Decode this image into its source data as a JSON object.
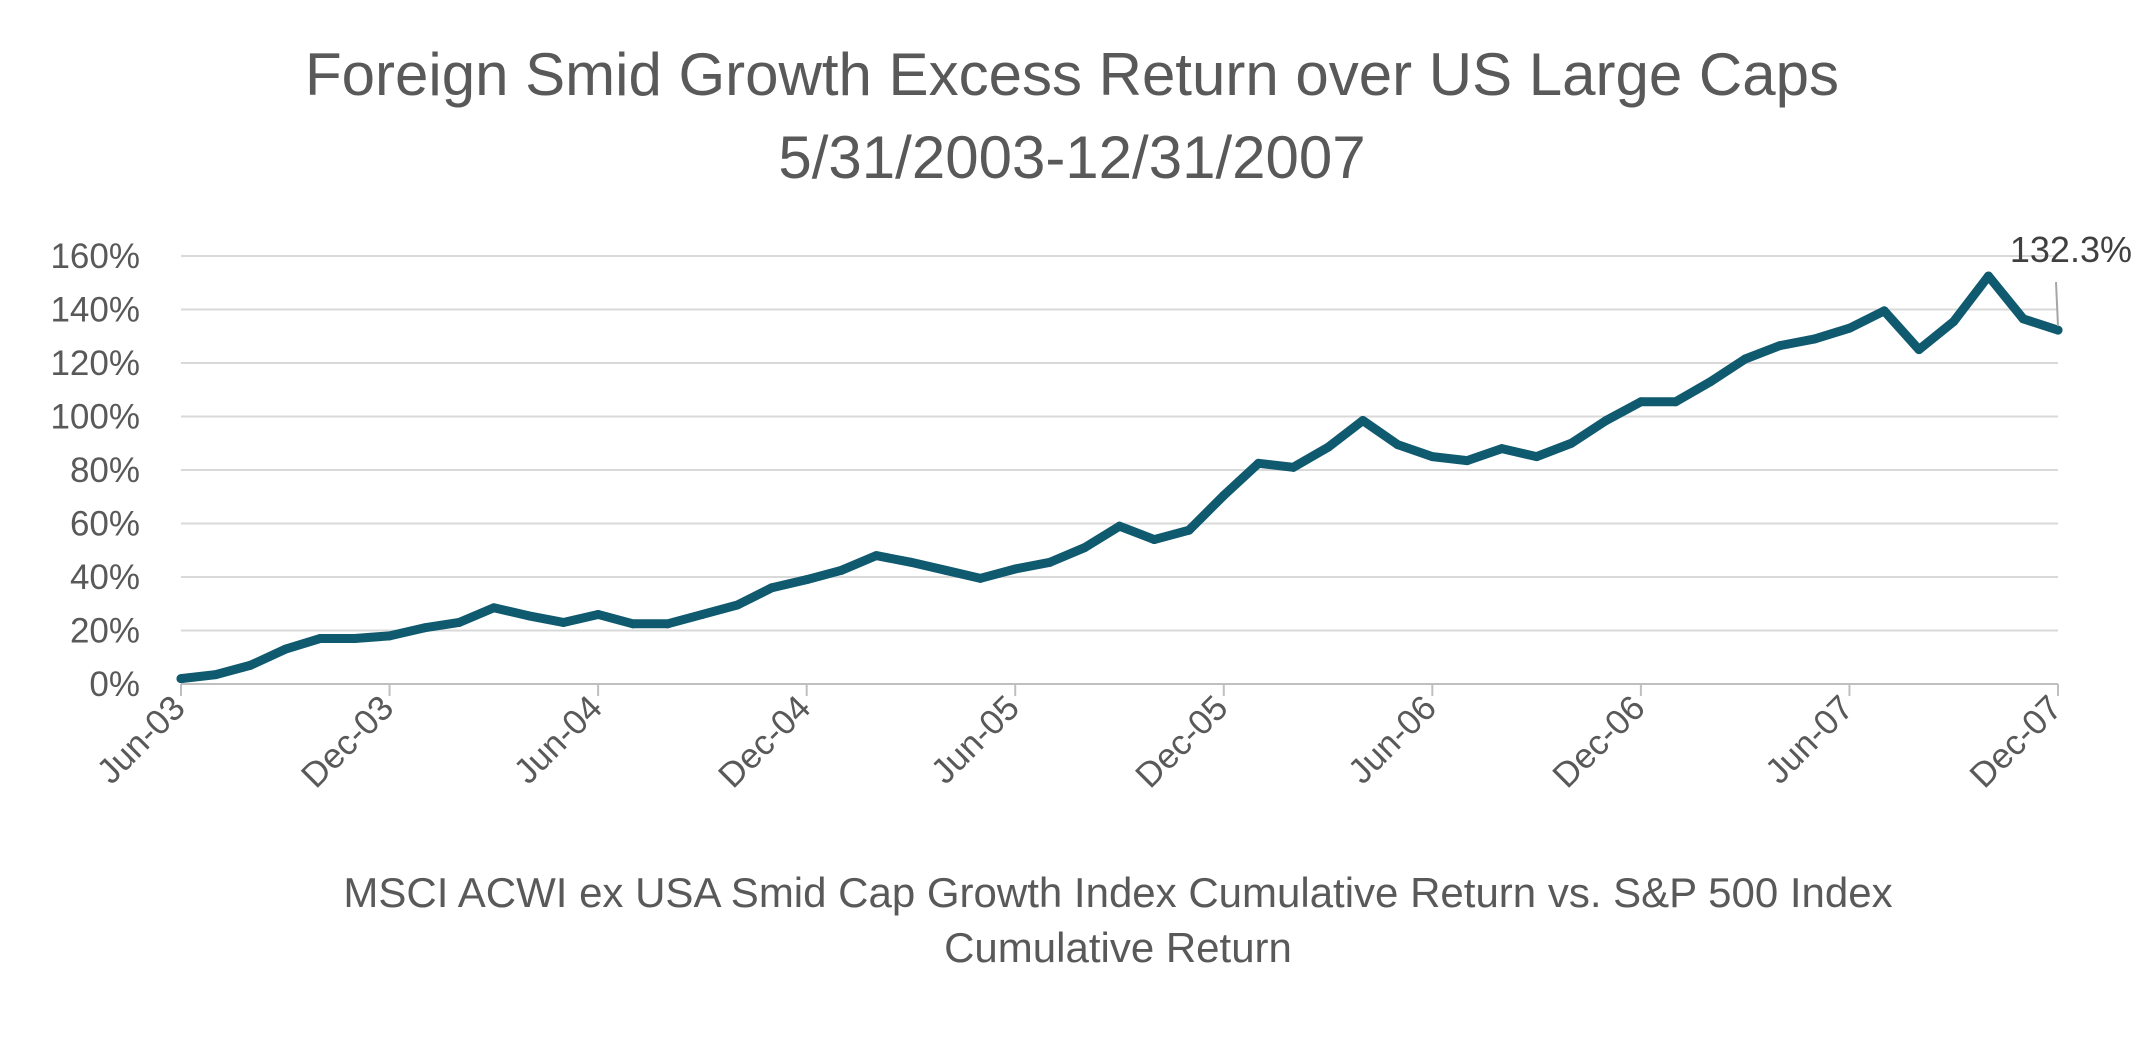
{
  "chart_data": {
    "type": "line",
    "title": "Foreign Smid Growth Excess Return over US Large Caps",
    "subtitle": "5/31/2003-12/31/2007",
    "xlabel": "MSCI ACWI ex USA Smid Cap Growth Index Cumulative Return vs. S&P 500 Index",
    "xlabel_line2": "Cumulative Return",
    "ylabel": "",
    "ylim": [
      0,
      160
    ],
    "y_ticks": [
      0,
      20,
      40,
      60,
      80,
      100,
      120,
      140,
      160
    ],
    "y_tick_labels": [
      "0%",
      "20%",
      "40%",
      "60%",
      "80%",
      "100%",
      "120%",
      "140%",
      "160%"
    ],
    "x_tick_labels": [
      "Jun-03",
      "Dec-03",
      "Jun-04",
      "Dec-04",
      "Jun-05",
      "Dec-05",
      "Jun-06",
      "Dec-06",
      "Jun-07",
      "Dec-07"
    ],
    "grid": true,
    "legend": "none",
    "line_color": "#0f5a6e",
    "x": [
      "Jun-03",
      "Jul-03",
      "Aug-03",
      "Sep-03",
      "Oct-03",
      "Nov-03",
      "Dec-03",
      "Jan-04",
      "Feb-04",
      "Mar-04",
      "Apr-04",
      "May-04",
      "Jun-04",
      "Jul-04",
      "Aug-04",
      "Sep-04",
      "Oct-04",
      "Nov-04",
      "Dec-04",
      "Jan-05",
      "Feb-05",
      "Mar-05",
      "Apr-05",
      "May-05",
      "Jun-05",
      "Jul-05",
      "Aug-05",
      "Sep-05",
      "Oct-05",
      "Nov-05",
      "Dec-05",
      "Jan-06",
      "Feb-06",
      "Mar-06",
      "Apr-06",
      "May-06",
      "Jun-06",
      "Jul-06",
      "Aug-06",
      "Sep-06",
      "Oct-06",
      "Nov-06",
      "Dec-06",
      "Jan-07",
      "Feb-07",
      "Mar-07",
      "Apr-07",
      "May-07",
      "Jun-07",
      "Jul-07",
      "Aug-07",
      "Sep-07",
      "Oct-07",
      "Nov-07",
      "Dec-07"
    ],
    "series": [
      {
        "values": [
          2,
          3.5,
          7,
          13,
          17,
          17,
          18,
          21,
          23,
          28.5,
          25.5,
          23,
          26,
          22.5,
          22.5,
          26,
          29.5,
          36,
          39,
          42.5,
          48,
          45.5,
          42.5,
          39.5,
          43,
          45.5,
          51,
          59,
          54,
          57.5,
          70.5,
          82.5,
          81,
          88.5,
          98.5,
          89.5,
          85,
          83.5,
          88,
          85,
          90,
          98.5,
          105.5,
          105.5,
          113,
          121.5,
          126.5,
          129,
          133,
          139.5,
          125,
          135.5,
          152.5,
          136.5,
          132.3
        ]
      }
    ],
    "annotation": {
      "label": "132.3%",
      "x": "Dec-07",
      "y": 132.3
    }
  }
}
